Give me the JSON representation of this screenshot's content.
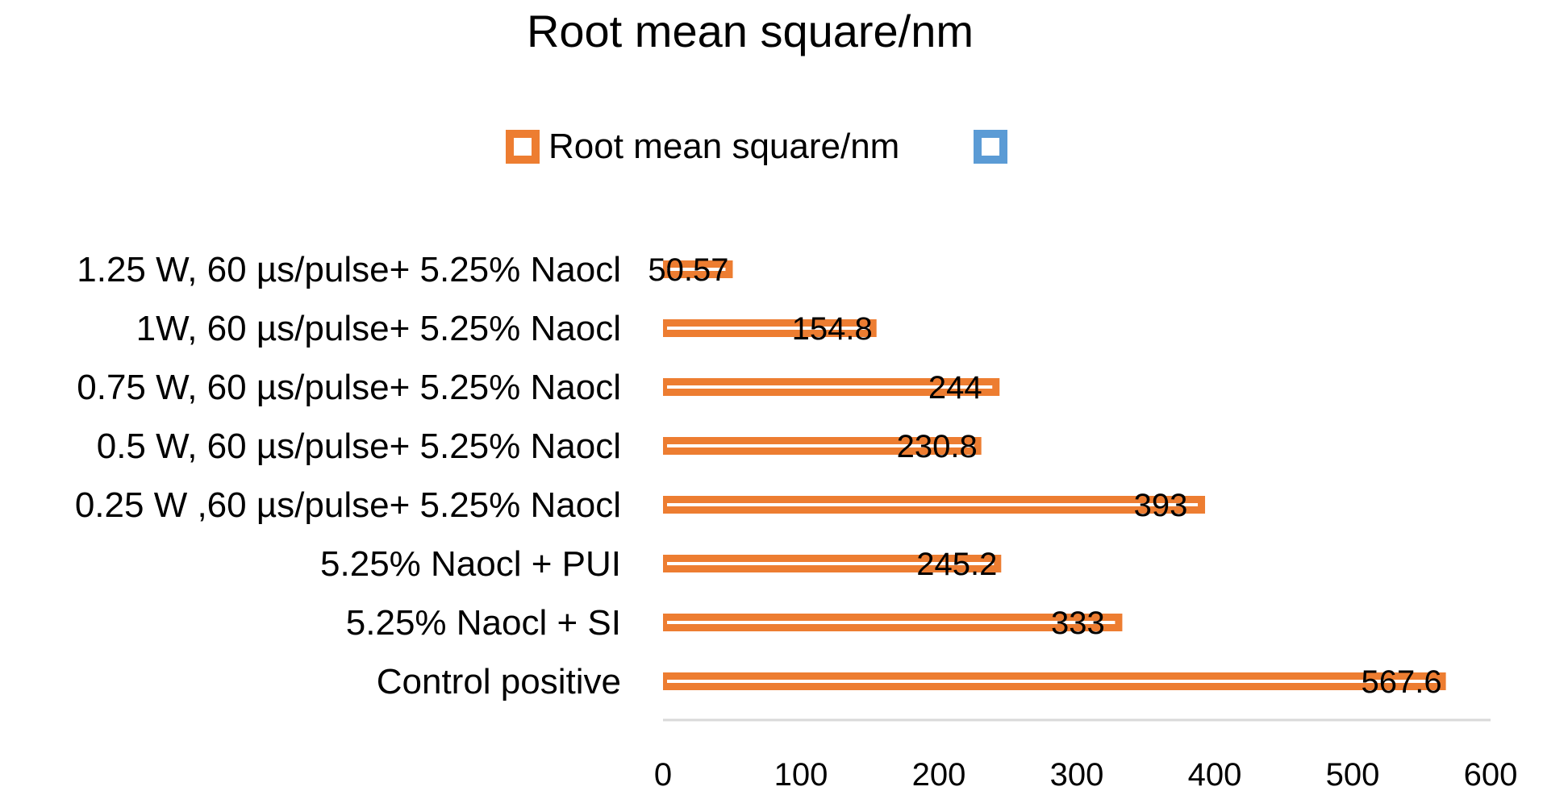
{
  "chart_data": {
    "type": "bar",
    "orientation": "horizontal",
    "title": "Root mean square/nm",
    "categories": [
      "1.25 W, 60 µs/pulse+ 5.25% Naocl",
      "1W, 60 µs/pulse+ 5.25% Naocl",
      "0.75 W, 60 µs/pulse+ 5.25% Naocl",
      "0.5 W, 60 µs/pulse+ 5.25% Naocl",
      "0.25 W ,60 µs/pulse+ 5.25% Naocl",
      "5.25% Naocl + PUI",
      "5.25% Naocl + SI",
      "Control positive"
    ],
    "series": [
      {
        "name": "Root mean square/nm",
        "color": "#ED7D31",
        "values": [
          50.57,
          154.8,
          244,
          230.8,
          393,
          245.2,
          333,
          567.6
        ],
        "labels": [
          "50.57",
          "154.8",
          "244",
          "230.8",
          "393",
          "245.2",
          "333",
          "567.6"
        ]
      }
    ],
    "legend": {
      "position": "top",
      "entries": [
        {
          "name": "Root mean square/nm",
          "color": "#ED7D31"
        },
        {
          "name": "",
          "color": "#5B9BD5"
        }
      ]
    },
    "xlim": [
      0,
      600
    ],
    "xticks": [
      0,
      100,
      200,
      300,
      400,
      500,
      600
    ],
    "xtick_labels": [
      "0",
      "100",
      "200",
      "300",
      "400",
      "500",
      "600"
    ],
    "grid": false,
    "axis_color": "#D9D9D9"
  }
}
